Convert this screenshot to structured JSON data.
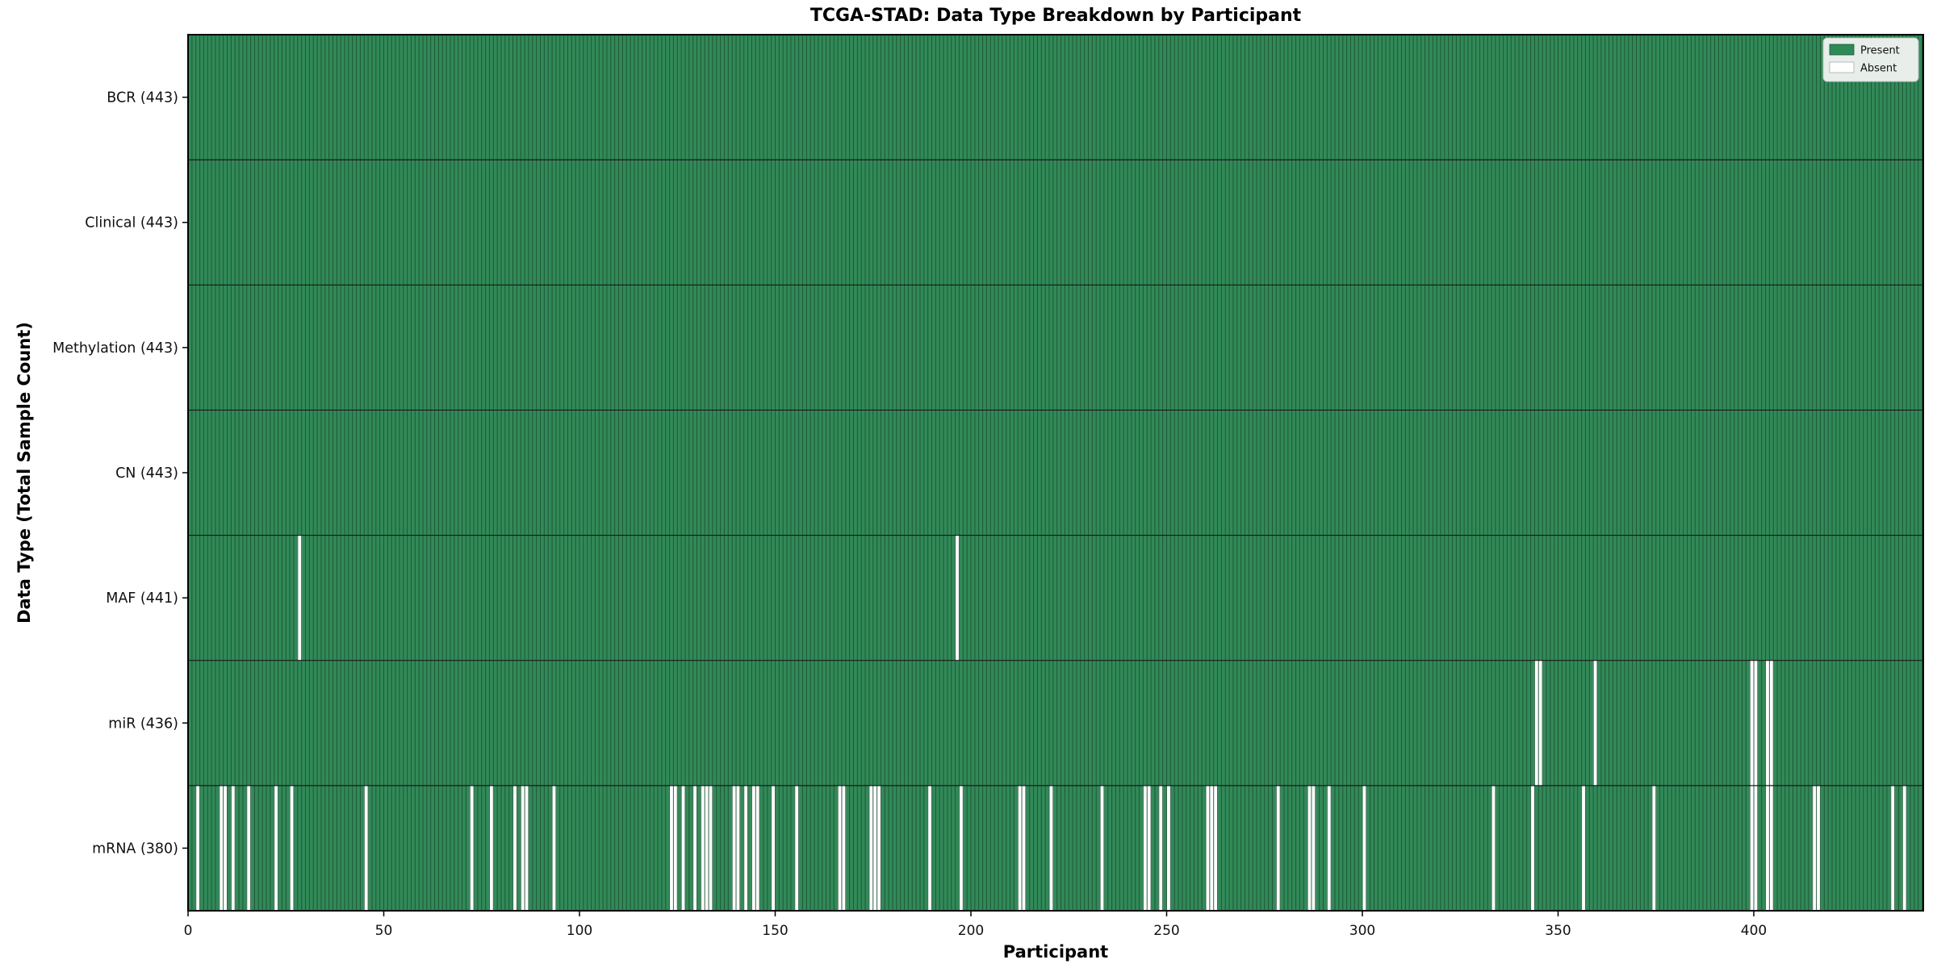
{
  "figure": {
    "title": "TCGA-STAD: Data Type Breakdown by Participant",
    "xlabel": "Participant",
    "ylabel": "Data Type (Total Sample Count)"
  },
  "chart_data": {
    "type": "heatmap",
    "title": "TCGA-STAD: Data Type Breakdown by Participant",
    "xlabel": "Participant",
    "ylabel": "Data Type (Total Sample Count)",
    "x_ticks": [
      0,
      50,
      100,
      150,
      200,
      250,
      300,
      350,
      400
    ],
    "xlim": [
      0,
      443
    ],
    "n_participants": 443,
    "grid": false,
    "legend_position": "upper right",
    "legend": [
      {
        "label": "Present",
        "color": "#2e8b57"
      },
      {
        "label": "Absent",
        "color": "#ffffff"
      }
    ],
    "colors": {
      "present": "#318a58",
      "absent": "#ffffff",
      "cell_edge": "#1e5134",
      "row_divider": "#1a1a1a",
      "axis": "#000000",
      "legend_bg": "#f8f8f8",
      "legend_border": "#cccccc"
    },
    "rows": [
      {
        "name": "BCR",
        "label": "BCR (443)",
        "present_count": 443,
        "absent": []
      },
      {
        "name": "Clinical",
        "label": "Clinical (443)",
        "present_count": 443,
        "absent": []
      },
      {
        "name": "Methylation",
        "label": "Methylation (443)",
        "present_count": 443,
        "absent": []
      },
      {
        "name": "CN",
        "label": "CN (443)",
        "present_count": 443,
        "absent": []
      },
      {
        "name": "MAF",
        "label": "MAF (441)",
        "present_count": 441,
        "absent": [
          28,
          196
        ]
      },
      {
        "name": "miR",
        "label": "miR (436)",
        "present_count": 436,
        "absent": [
          344,
          345,
          359,
          399,
          400,
          403,
          404
        ]
      },
      {
        "name": "mRNA",
        "label": "mRNA (380)",
        "present_count": 380,
        "absent": [
          2,
          8,
          9,
          11,
          15,
          22,
          26,
          45,
          72,
          77,
          83,
          85,
          86,
          93,
          123,
          124,
          126,
          129,
          131,
          132,
          133,
          139,
          140,
          142,
          144,
          145,
          149,
          155,
          166,
          167,
          174,
          175,
          176,
          189,
          197,
          212,
          213,
          220,
          233,
          244,
          245,
          248,
          250,
          260,
          261,
          262,
          278,
          286,
          287,
          291,
          300,
          333,
          343,
          356,
          374,
          399,
          400,
          403,
          404,
          415,
          416,
          435,
          438
        ]
      }
    ]
  }
}
